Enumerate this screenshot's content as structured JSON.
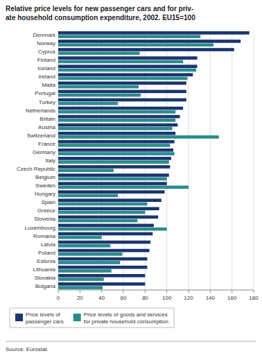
{
  "chart_data": {
    "type": "bar",
    "orientation": "horizontal",
    "title": "Relative price levels for new passenger cars and for priv-\nate household consumption expenditure, 2002. EU15=100",
    "categories": [
      "Denmark",
      "Norway",
      "Cyprus",
      "Finland",
      "Iceland",
      "Ireland",
      "Malta",
      "Portugal",
      "Turkey",
      "Netherlands",
      "Britain",
      "Austria",
      "Switzerland",
      "France",
      "Germany",
      "Italy",
      "Czech Republic",
      "Belgium",
      "Sweden",
      "Hungary",
      "Spain",
      "Greece",
      "Slovenia",
      "Luxembourg",
      "Romania",
      "Latvia",
      "Poland",
      "Estonia",
      "Lithuania",
      "Slovakia",
      "Bulgaria"
    ],
    "series": [
      {
        "name": "Price levels of\npassenger cars",
        "color": "#1a3570",
        "values": [
          176,
          168,
          162,
          128,
          128,
          124,
          118,
          118,
          118,
          115,
          112,
          110,
          108,
          107,
          106,
          104,
          103,
          102,
          100,
          98,
          95,
          93,
          92,
          88,
          87,
          85,
          84,
          82,
          82,
          80,
          80
        ]
      },
      {
        "name": "Price levels of goods and services\nfor private household consumption",
        "color": "#2a8c8c",
        "values": [
          131,
          143,
          75,
          115,
          127,
          119,
          74,
          76,
          55,
          108,
          108,
          105,
          148,
          103,
          107,
          102,
          51,
          100,
          120,
          55,
          82,
          80,
          73,
          100,
          40,
          48,
          59,
          57,
          49,
          42,
          41
        ]
      }
    ],
    "xlim": [
      0,
      180
    ],
    "xticks": [
      0,
      20,
      40,
      60,
      80,
      100,
      120,
      140,
      160,
      180
    ],
    "grid": true,
    "legend": "lower left",
    "annotations": [
      "Source: Eurostat."
    ]
  }
}
